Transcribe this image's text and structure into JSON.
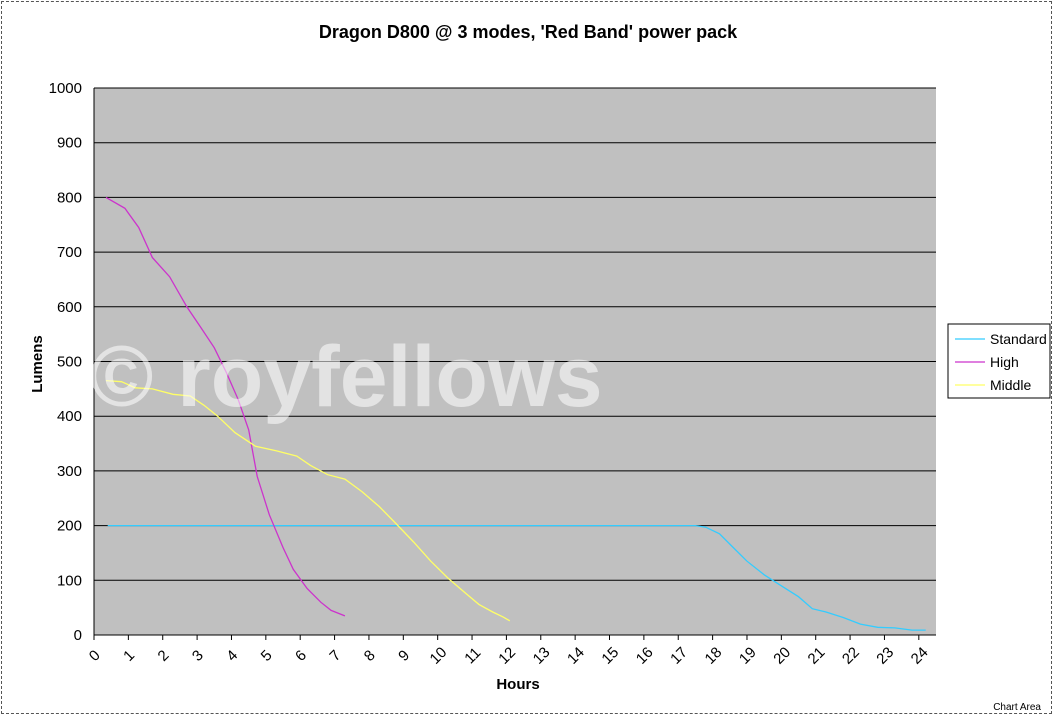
{
  "chart_data": {
    "type": "line",
    "title": "Dragon D800 @ 3 modes, 'Red Band' power pack",
    "xlabel": "Hours",
    "ylabel": "Lumens",
    "xlim": [
      0,
      24.5
    ],
    "ylim": [
      0,
      1000
    ],
    "x_ticks": [
      "0",
      "1",
      "2",
      "3",
      "4",
      "5",
      "6",
      "7",
      "8",
      "9",
      "10",
      "11",
      "12",
      "13",
      "14",
      "15",
      "16",
      "17",
      "18",
      "19",
      "20",
      "21",
      "22",
      "23",
      "24"
    ],
    "y_ticks": [
      "0",
      "100",
      "200",
      "300",
      "400",
      "500",
      "600",
      "700",
      "800",
      "900",
      "1000"
    ],
    "grid": true,
    "legend_position": "right",
    "plot_background": "#c0c0c0",
    "series": [
      {
        "name": "Standard",
        "color": "#33ccff",
        "points": [
          [
            0.4,
            200
          ],
          [
            17.5,
            200
          ],
          [
            17.8,
            197
          ],
          [
            18.2,
            185
          ],
          [
            18.6,
            160
          ],
          [
            19.0,
            135
          ],
          [
            19.5,
            110
          ],
          [
            20.0,
            90
          ],
          [
            20.5,
            70
          ],
          [
            20.9,
            48
          ],
          [
            21.3,
            42
          ],
          [
            21.8,
            32
          ],
          [
            22.3,
            20
          ],
          [
            22.8,
            14
          ],
          [
            23.3,
            13
          ],
          [
            23.8,
            9
          ],
          [
            24.2,
            9
          ]
        ]
      },
      {
        "name": "High",
        "color": "#cc33cc",
        "points": [
          [
            0.35,
            800
          ],
          [
            0.9,
            780
          ],
          [
            1.3,
            745
          ],
          [
            1.7,
            690
          ],
          [
            2.2,
            655
          ],
          [
            2.7,
            600
          ],
          [
            3.1,
            563
          ],
          [
            3.5,
            525
          ],
          [
            3.85,
            480
          ],
          [
            4.2,
            430
          ],
          [
            4.5,
            375
          ],
          [
            4.75,
            290
          ],
          [
            5.1,
            220
          ],
          [
            5.5,
            160
          ],
          [
            5.8,
            120
          ],
          [
            6.2,
            85
          ],
          [
            6.6,
            60
          ],
          [
            6.9,
            45
          ],
          [
            7.3,
            35
          ]
        ]
      },
      {
        "name": "Middle",
        "color": "#ffff66",
        "points": [
          [
            0.35,
            465
          ],
          [
            0.8,
            463
          ],
          [
            1.2,
            452
          ],
          [
            1.7,
            450
          ],
          [
            2.3,
            440
          ],
          [
            2.8,
            437
          ],
          [
            3.2,
            420
          ],
          [
            3.6,
            400
          ],
          [
            4.1,
            370
          ],
          [
            4.7,
            345
          ],
          [
            5.3,
            337
          ],
          [
            5.9,
            327
          ],
          [
            6.3,
            310
          ],
          [
            6.8,
            293
          ],
          [
            7.3,
            285
          ],
          [
            7.8,
            262
          ],
          [
            8.3,
            235
          ],
          [
            8.8,
            203
          ],
          [
            9.3,
            170
          ],
          [
            9.8,
            135
          ],
          [
            10.3,
            104
          ],
          [
            10.8,
            77
          ],
          [
            11.2,
            56
          ],
          [
            11.6,
            42
          ],
          [
            11.9,
            33
          ],
          [
            12.1,
            26
          ]
        ]
      }
    ]
  },
  "watermark": "© royfellows",
  "corner_label": "Chart Area"
}
